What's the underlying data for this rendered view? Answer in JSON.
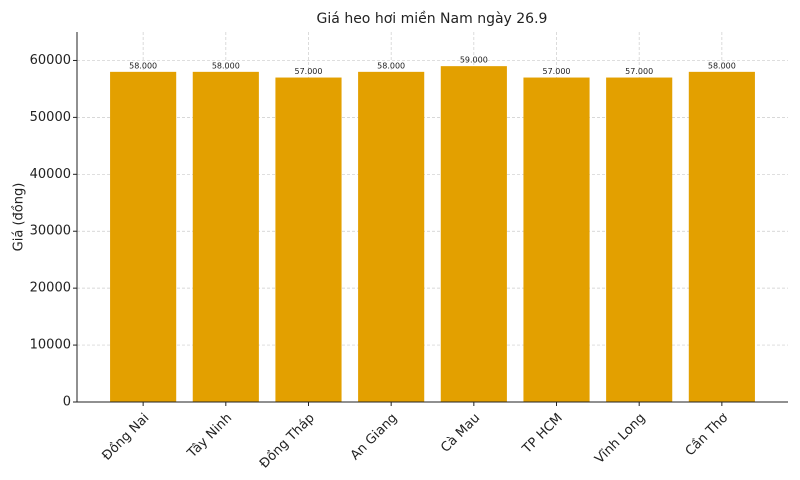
{
  "chart_data": {
    "type": "bar",
    "title": "Giá heo hơi miền Nam ngày 26.9",
    "ylabel": "Giá (đồng)",
    "categories": [
      "Đồng Nai",
      "Tây Ninh",
      "Đồng Tháp",
      "An Giang",
      "Cà Mau",
      "TP HCM",
      "Vĩnh Long",
      "Cần Thơ"
    ],
    "values": [
      58000,
      58000,
      57000,
      58000,
      59000,
      57000,
      57000,
      58000
    ],
    "value_labels": [
      "58.000",
      "58.000",
      "57.000",
      "58.000",
      "59.000",
      "57.000",
      "57.000",
      "58.000"
    ],
    "color": "#e3a000",
    "ylim": [
      0,
      65000
    ],
    "yticks": [
      0,
      10000,
      20000,
      30000,
      40000,
      50000,
      60000
    ],
    "grid": true
  }
}
